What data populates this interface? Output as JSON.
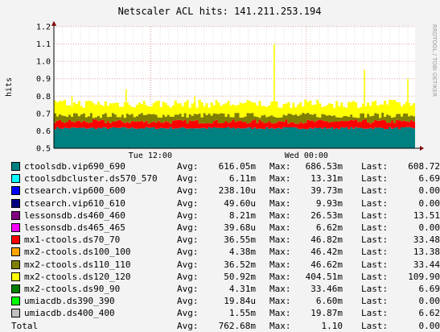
{
  "chart_data": {
    "type": "area",
    "title": "Netscaler ACL hits: 141.211.253.194",
    "ylabel": "hits",
    "watermark": "RRDTOOL / TOBI OETIKER",
    "ylim": [
      0.5,
      1.2
    ],
    "yticks": [
      "0.5",
      "0.6",
      "0.7",
      "0.8",
      "0.9",
      "1.0",
      "1.1",
      "1.2"
    ],
    "xticks": [
      "Tue 12:00",
      "Wed 00:00"
    ],
    "grid": true,
    "stack_layers": [
      {
        "name": "teal base",
        "color": "#008080",
        "level": 0.616
      },
      {
        "name": "red band",
        "color": "#ff0000",
        "level": 0.653
      },
      {
        "name": "olive band",
        "color": "#808000",
        "level": 0.69
      },
      {
        "name": "yellow band",
        "color": "#ffff00",
        "level": 0.741
      }
    ],
    "spikes": [
      {
        "x_frac": 0.61,
        "value": 1.1
      },
      {
        "x_frac": 0.86,
        "value": 0.95
      },
      {
        "x_frac": 0.39,
        "value": 0.8
      },
      {
        "x_frac": 0.05,
        "value": 0.8
      },
      {
        "x_frac": 0.98,
        "value": 0.9
      },
      {
        "x_frac": 0.2,
        "value": 0.84
      }
    ]
  },
  "legend": {
    "labels": {
      "avg": "Avg:",
      "max": "Max:",
      "last": "Last:"
    },
    "entries": [
      {
        "name": "ctoolsdb.vip690_690",
        "color": "#008080",
        "avg": "616.05m",
        "max": "686.53m",
        "last": "608.72"
      },
      {
        "name": "ctoolsdbcluster.ds570_570",
        "color": "#00ffff",
        "avg": "6.11m",
        "max": "13.31m",
        "last": "6.69"
      },
      {
        "name": "ctsearch.vip600_600",
        "color": "#0000ff",
        "avg": "238.10u",
        "max": "39.73m",
        "last": "0.00"
      },
      {
        "name": "ctsearch.vip610_610",
        "color": "#000080",
        "avg": "49.60u",
        "max": "9.93m",
        "last": "0.00"
      },
      {
        "name": "lessonsdb.ds460_460",
        "color": "#800080",
        "avg": "8.21m",
        "max": "26.53m",
        "last": "13.51"
      },
      {
        "name": "lessonsdb.ds465_465",
        "color": "#ff00ff",
        "avg": "39.68u",
        "max": "6.62m",
        "last": "0.00"
      },
      {
        "name": "mx1-ctools.ds70_70",
        "color": "#ff0000",
        "avg": "36.55m",
        "max": "46.82m",
        "last": "33.48"
      },
      {
        "name": "mx2-ctools.ds100_100",
        "color": "#ffa500",
        "avg": "4.38m",
        "max": "46.42m",
        "last": "13.38"
      },
      {
        "name": "mx2-ctools.ds110_110",
        "color": "#808000",
        "avg": "36.52m",
        "max": "46.62m",
        "last": "33.44"
      },
      {
        "name": "mx2-ctools.ds120_120",
        "color": "#ffff00",
        "avg": "50.92m",
        "max": "404.51m",
        "last": "109.90"
      },
      {
        "name": "mx2-ctools.ds90_90",
        "color": "#008000",
        "avg": "4.31m",
        "max": "33.46m",
        "last": "6.69"
      },
      {
        "name": "umiacdb.ds390_390",
        "color": "#00ff00",
        "avg": "19.84u",
        "max": "6.60m",
        "last": "0.00"
      },
      {
        "name": "umiacdb.ds400_400",
        "color": "#c0c0c0",
        "avg": "1.55m",
        "max": "19.87m",
        "last": "6.62"
      }
    ],
    "total": {
      "name": "Total",
      "avg": "762.68m",
      "max": "1.10",
      "last": "0.00"
    }
  }
}
